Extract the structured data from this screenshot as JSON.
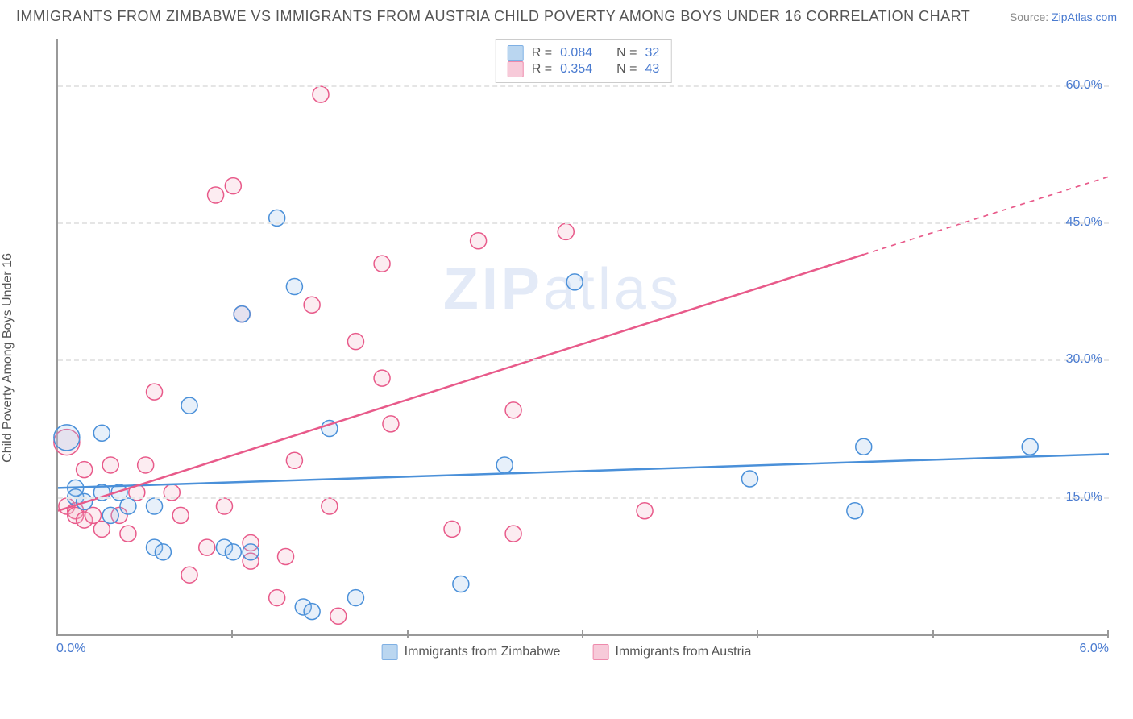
{
  "title": "IMMIGRANTS FROM ZIMBABWE VS IMMIGRANTS FROM AUSTRIA CHILD POVERTY AMONG BOYS UNDER 16 CORRELATION CHART",
  "source_label": "Source:",
  "source_name": "ZipAtlas.com",
  "ylabel": "Child Poverty Among Boys Under 16",
  "watermark_bold": "ZIP",
  "watermark_light": "atlas",
  "chart": {
    "type": "scatter",
    "background_color": "#ffffff",
    "grid_color": "#e5e5e5",
    "axis_color": "#999999",
    "tick_label_color": "#4a7bd0",
    "text_color": "#555555",
    "title_fontsize": 18,
    "label_fontsize": 16,
    "tick_fontsize": 16,
    "xlim": [
      0.0,
      6.0
    ],
    "ylim": [
      0.0,
      65.0
    ],
    "yticks": [
      15.0,
      30.0,
      45.0,
      60.0
    ],
    "ytick_labels": [
      "15.0%",
      "30.0%",
      "45.0%",
      "60.0%"
    ],
    "xtick_marks": [
      1.0,
      2.0,
      3.0,
      4.0,
      5.0,
      6.0
    ],
    "xtick_left_label": "0.0%",
    "xtick_right_label": "6.0%",
    "marker_radius": 10,
    "marker_radius_large": 16,
    "marker_stroke_width": 1.5,
    "marker_fill_opacity": 0.25,
    "line_width": 2.5,
    "series": [
      {
        "name": "Immigrants from Zimbabwe",
        "color_stroke": "#4a90d9",
        "color_fill": "#9ec5eb",
        "r_value": "0.084",
        "n_value": "32",
        "trend": {
          "x1": 0.0,
          "y1": 16.0,
          "x2": 6.0,
          "y2": 19.7,
          "extrapolate_from": 6.0
        },
        "points": [
          {
            "x": 0.05,
            "y": 21.5,
            "r": 16
          },
          {
            "x": 0.1,
            "y": 16.0
          },
          {
            "x": 0.1,
            "y": 15.0
          },
          {
            "x": 0.15,
            "y": 14.5
          },
          {
            "x": 0.25,
            "y": 22.0
          },
          {
            "x": 0.25,
            "y": 15.5
          },
          {
            "x": 0.3,
            "y": 13.0
          },
          {
            "x": 0.35,
            "y": 15.5
          },
          {
            "x": 0.4,
            "y": 14.0
          },
          {
            "x": 0.55,
            "y": 9.5
          },
          {
            "x": 0.55,
            "y": 14.0
          },
          {
            "x": 0.6,
            "y": 9.0
          },
          {
            "x": 0.75,
            "y": 25.0
          },
          {
            "x": 0.95,
            "y": 9.5
          },
          {
            "x": 1.0,
            "y": 9.0
          },
          {
            "x": 1.05,
            "y": 35.0
          },
          {
            "x": 1.1,
            "y": 9.0
          },
          {
            "x": 1.25,
            "y": 45.5
          },
          {
            "x": 1.35,
            "y": 38.0
          },
          {
            "x": 1.4,
            "y": 3.0
          },
          {
            "x": 1.45,
            "y": 2.5
          },
          {
            "x": 1.55,
            "y": 22.5
          },
          {
            "x": 1.7,
            "y": 4.0
          },
          {
            "x": 2.3,
            "y": 5.5
          },
          {
            "x": 2.55,
            "y": 18.5
          },
          {
            "x": 2.95,
            "y": 38.5
          },
          {
            "x": 3.95,
            "y": 17.0
          },
          {
            "x": 4.55,
            "y": 13.5
          },
          {
            "x": 4.6,
            "y": 20.5
          },
          {
            "x": 5.55,
            "y": 20.5
          }
        ]
      },
      {
        "name": "Immigrants from Austria",
        "color_stroke": "#e85a8a",
        "color_fill": "#f5b5c9",
        "r_value": "0.354",
        "n_value": "43",
        "trend": {
          "x1": 0.0,
          "y1": 13.5,
          "x2": 4.6,
          "y2": 41.5,
          "extrapolate_from": 4.6
        },
        "points": [
          {
            "x": 0.05,
            "y": 21.0,
            "r": 16
          },
          {
            "x": 0.05,
            "y": 14.0
          },
          {
            "x": 0.1,
            "y": 13.5
          },
          {
            "x": 0.1,
            "y": 13.0
          },
          {
            "x": 0.15,
            "y": 18.0
          },
          {
            "x": 0.15,
            "y": 12.5
          },
          {
            "x": 0.2,
            "y": 13.0
          },
          {
            "x": 0.25,
            "y": 11.5
          },
          {
            "x": 0.3,
            "y": 18.5
          },
          {
            "x": 0.35,
            "y": 13.0
          },
          {
            "x": 0.4,
            "y": 11.0
          },
          {
            "x": 0.45,
            "y": 15.5
          },
          {
            "x": 0.5,
            "y": 18.5
          },
          {
            "x": 0.55,
            "y": 26.5
          },
          {
            "x": 0.65,
            "y": 15.5
          },
          {
            "x": 0.7,
            "y": 13.0
          },
          {
            "x": 0.75,
            "y": 6.5
          },
          {
            "x": 0.85,
            "y": 9.5
          },
          {
            "x": 0.9,
            "y": 48.0
          },
          {
            "x": 0.95,
            "y": 14.0
          },
          {
            "x": 1.0,
            "y": 49.0
          },
          {
            "x": 1.05,
            "y": 35.0
          },
          {
            "x": 1.1,
            "y": 8.0
          },
          {
            "x": 1.1,
            "y": 10.0
          },
          {
            "x": 1.25,
            "y": 4.0
          },
          {
            "x": 1.3,
            "y": 8.5
          },
          {
            "x": 1.35,
            "y": 19.0
          },
          {
            "x": 1.45,
            "y": 36.0
          },
          {
            "x": 1.5,
            "y": 59.0
          },
          {
            "x": 1.55,
            "y": 14.0
          },
          {
            "x": 1.6,
            "y": 2.0
          },
          {
            "x": 1.7,
            "y": 32.0
          },
          {
            "x": 1.85,
            "y": 28.0
          },
          {
            "x": 1.85,
            "y": 40.5
          },
          {
            "x": 1.9,
            "y": 23.0
          },
          {
            "x": 2.25,
            "y": 11.5
          },
          {
            "x": 2.4,
            "y": 43.0
          },
          {
            "x": 2.6,
            "y": 11.0
          },
          {
            "x": 2.6,
            "y": 24.5
          },
          {
            "x": 2.9,
            "y": 44.0
          },
          {
            "x": 3.35,
            "y": 13.5
          }
        ]
      }
    ],
    "legend_top": {
      "r_label": "R =",
      "n_label": "N ="
    }
  }
}
